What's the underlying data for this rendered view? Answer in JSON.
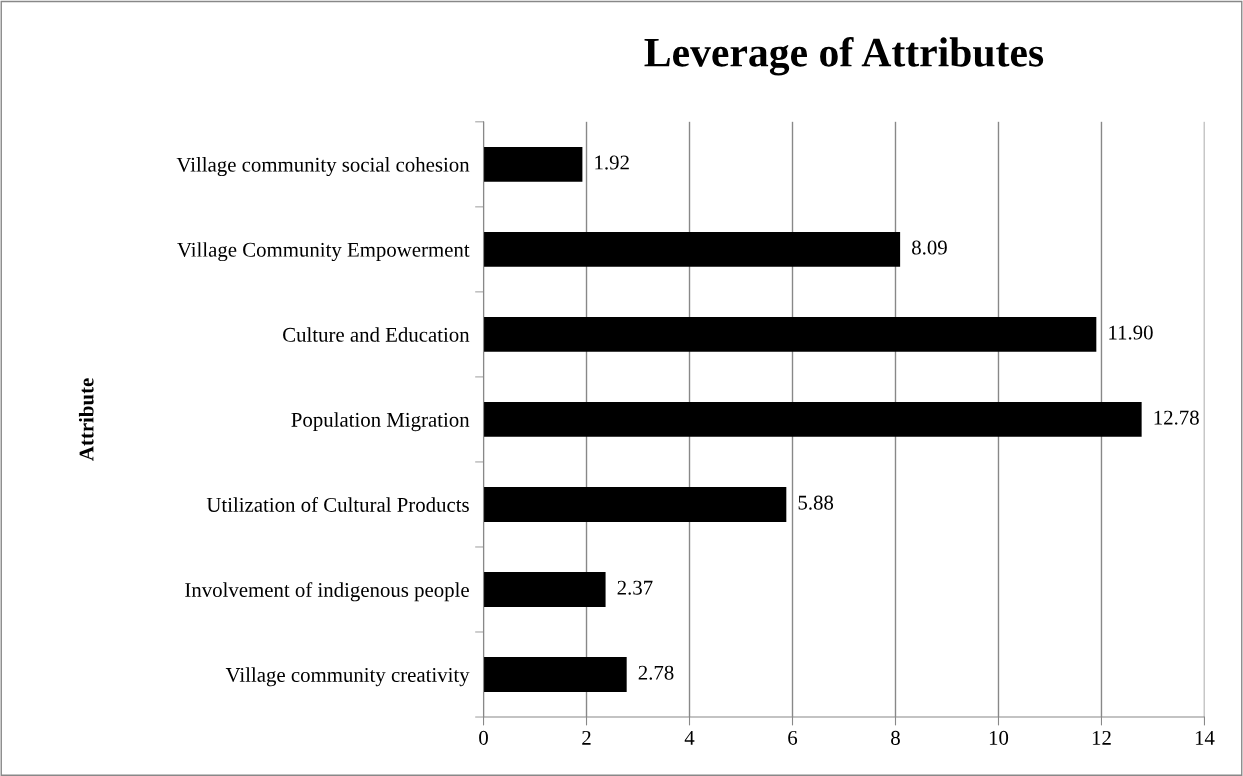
{
  "chart_data": {
    "type": "bar",
    "orientation": "horizontal",
    "title": "Leverage of Attributes",
    "ylabel": "Attribute",
    "categories": [
      "Village community social cohesion",
      "Village Community Empowerment",
      "Culture and Education",
      "Population Migration",
      "Utilization of Cultural Products",
      "Involvement of indigenous people",
      "Village community creativity"
    ],
    "values": [
      1.92,
      8.09,
      11.9,
      12.78,
      5.88,
      2.37,
      2.78
    ],
    "value_labels": [
      "1.92",
      "8.09",
      "11.90",
      "12.78",
      "5.88",
      "2.37",
      "2.78"
    ],
    "color": "#000000",
    "xlim": [
      0,
      14
    ],
    "xticks": [
      0,
      2,
      4,
      6,
      8,
      10,
      12,
      14
    ],
    "grid": "x",
    "legend": false
  }
}
